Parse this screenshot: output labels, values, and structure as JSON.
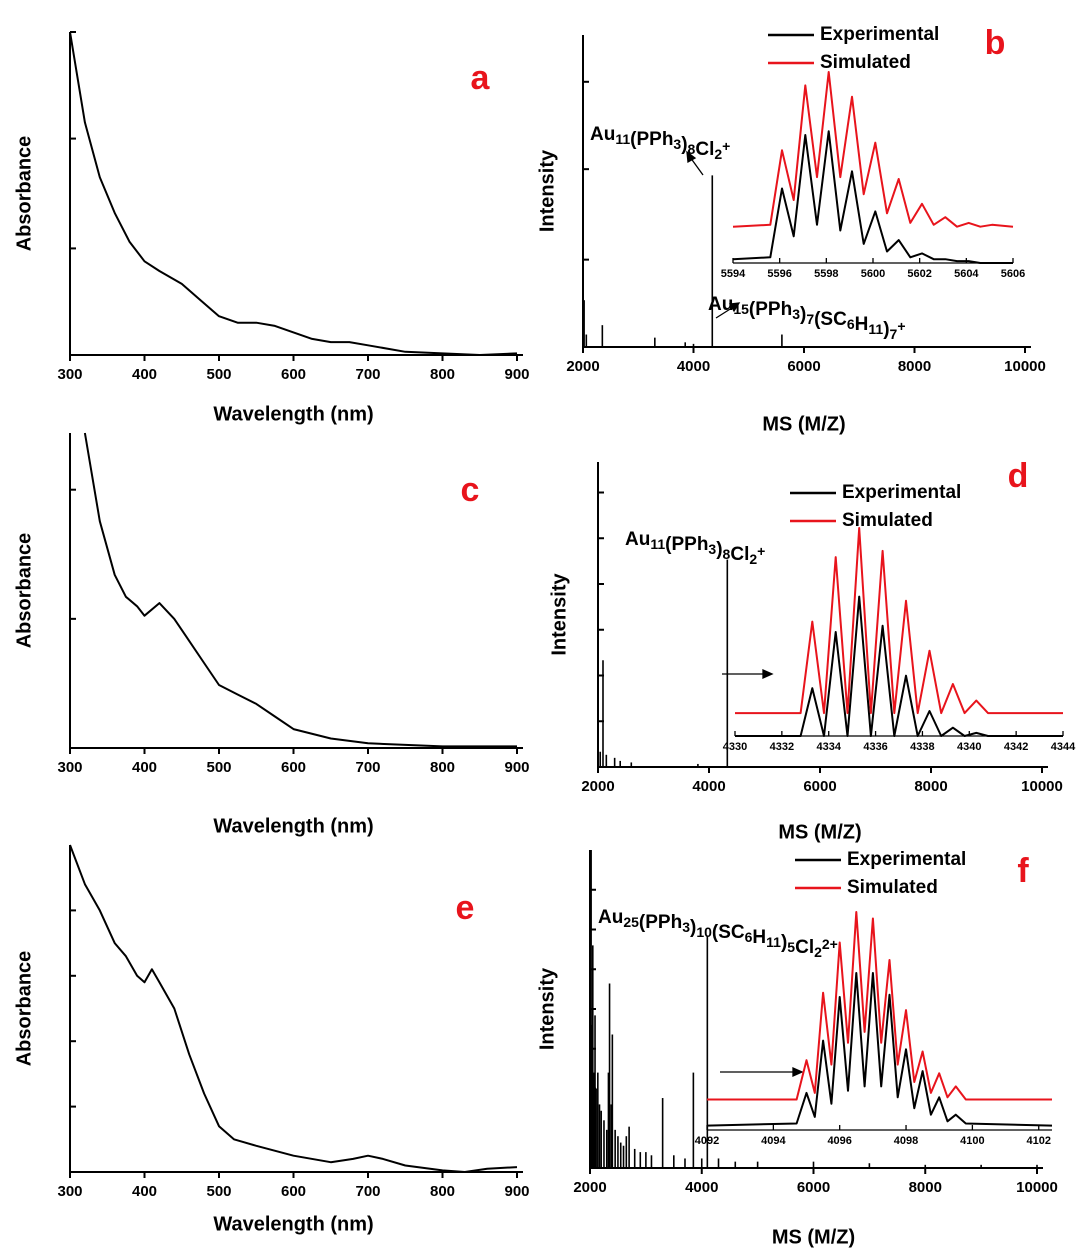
{
  "chart_data": [
    {
      "type": "line",
      "label": "a",
      "xlabel": "Wavelength (nm)",
      "ylabel": "Absorbance",
      "x": [
        300,
        320,
        340,
        360,
        380,
        400,
        420,
        450,
        475,
        500,
        525,
        550,
        575,
        600,
        625,
        650,
        675,
        700,
        750,
        800,
        850,
        900
      ],
      "series": [
        {
          "color": "#000000",
          "values": [
            1.0,
            0.72,
            0.55,
            0.44,
            0.35,
            0.29,
            0.26,
            0.22,
            0.17,
            0.12,
            0.1,
            0.1,
            0.09,
            0.07,
            0.05,
            0.04,
            0.04,
            0.03,
            0.01,
            0.005,
            0,
            0.005
          ]
        }
      ],
      "xlim": [
        300,
        900
      ],
      "xticks": [
        300,
        400,
        500,
        600,
        700,
        800,
        900
      ],
      "ylim": [
        0,
        1
      ],
      "yticks": [
        0,
        0.33,
        0.67,
        1
      ]
    },
    {
      "type": "stem",
      "label": "b",
      "xlabel": "MS (M/Z)",
      "ylabel": "Intensity",
      "x": [
        2000,
        2020,
        2060,
        2350,
        3300,
        3850,
        4000,
        4340,
        5600
      ],
      "values": [
        1.0,
        0.15,
        0.04,
        0.07,
        0.03,
        0.015,
        0.01,
        0.55,
        0.04
      ],
      "xlim": [
        2000,
        10000
      ],
      "xticks": [
        2000,
        4000,
        6000,
        8000,
        10000
      ],
      "ylim": [
        0,
        1
      ],
      "yticks": [
        0,
        0.28,
        0.57,
        0.85
      ],
      "annotations": [
        "Au11(PPh3)8Cl2+",
        "Au15(PPh3)7(SC6H11)7+"
      ],
      "inset": {
        "type": "line",
        "x": [
          5594,
          5595.6,
          5596.1,
          5596.6,
          5597.1,
          5597.6,
          5598.1,
          5598.6,
          5599.1,
          5599.6,
          5600.1,
          5600.6,
          5601.1,
          5601.6,
          5602.1,
          5602.6,
          5603.1,
          5603.6,
          5604.1,
          5604.6,
          5605.1,
          5606
        ],
        "series": [
          {
            "name": "Experimental",
            "color": "#000000",
            "values": [
              0.02,
              0.03,
              0.39,
              0.14,
              0.67,
              0.2,
              0.69,
              0.17,
              0.48,
              0.1,
              0.27,
              0.06,
              0.12,
              0.03,
              0.05,
              0.02,
              0.02,
              0.01,
              0.01,
              0,
              0,
              0
            ]
          },
          {
            "name": "Simulated",
            "color": "#e8141c",
            "values": [
              0.19,
              0.2,
              0.59,
              0.33,
              0.93,
              0.45,
              1.0,
              0.45,
              0.87,
              0.36,
              0.63,
              0.26,
              0.44,
              0.21,
              0.31,
              0.2,
              0.24,
              0.19,
              0.21,
              0.19,
              0.2,
              0.19
            ]
          }
        ],
        "xlim": [
          5594,
          5606
        ],
        "xticks": [
          5594,
          5596,
          5598,
          5600,
          5602,
          5604,
          5606
        ],
        "ylim": [
          0,
          1
        ]
      }
    },
    {
      "type": "line",
      "label": "c",
      "xlabel": "Wavelength (nm)",
      "ylabel": "Absorbance",
      "x": [
        320,
        340,
        360,
        375,
        390,
        400,
        420,
        440,
        460,
        480,
        500,
        525,
        550,
        575,
        600,
        650,
        700,
        800,
        900
      ],
      "series": [
        {
          "color": "#000000",
          "values": [
            1.0,
            0.72,
            0.55,
            0.48,
            0.45,
            0.42,
            0.46,
            0.41,
            0.34,
            0.27,
            0.2,
            0.17,
            0.14,
            0.1,
            0.06,
            0.03,
            0.015,
            0.005,
            0.005
          ]
        }
      ],
      "xlim": [
        300,
        900
      ],
      "xticks": [
        300,
        400,
        500,
        600,
        700,
        800,
        900
      ],
      "ylim": [
        0,
        1
      ],
      "yticks": [
        0,
        0.41,
        0.82
      ]
    },
    {
      "type": "stem",
      "label": "d",
      "xlabel": "MS (M/Z)",
      "ylabel": "Intensity",
      "x": [
        2000,
        2040,
        2090,
        2150,
        2300,
        2400,
        2600,
        3800,
        4330
      ],
      "values": [
        1.0,
        0.05,
        0.35,
        0.04,
        0.03,
        0.02,
        0.015,
        0.01,
        0.68
      ],
      "xlim": [
        2000,
        10000
      ],
      "xticks": [
        2000,
        4000,
        6000,
        8000,
        10000
      ],
      "ylim": [
        0,
        1
      ],
      "yticks": [
        0,
        0.15,
        0.3,
        0.45,
        0.6,
        0.75,
        0.9
      ],
      "annotations": [
        "Au11(PPh3)8Cl2+"
      ],
      "inset": {
        "type": "line",
        "x": [
          4330,
          4332.8,
          4333.3,
          4333.8,
          4334.3,
          4334.8,
          4335.3,
          4335.8,
          4336.3,
          4336.8,
          4337.3,
          4337.8,
          4338.3,
          4338.8,
          4339.3,
          4339.8,
          4340.3,
          4340.8,
          4344
        ],
        "series": [
          {
            "name": "Experimental",
            "color": "#000000",
            "values": [
              0,
              0,
              0.23,
              0,
              0.5,
              0,
              0.67,
              0,
              0.53,
              0,
              0.29,
              0,
              0.12,
              0,
              0.04,
              0,
              0.015,
              0,
              0
            ]
          },
          {
            "name": "Simulated",
            "color": "#e8141c",
            "values": [
              0.11,
              0.11,
              0.55,
              0.11,
              0.86,
              0.11,
              1.0,
              0.11,
              0.89,
              0.11,
              0.65,
              0.11,
              0.41,
              0.11,
              0.25,
              0.11,
              0.17,
              0.11,
              0.11
            ]
          }
        ],
        "xlim": [
          4330,
          4344
        ],
        "xticks": [
          4330,
          4332,
          4334,
          4336,
          4338,
          4340,
          4342,
          4344
        ],
        "ylim": [
          0,
          1
        ]
      }
    },
    {
      "type": "line",
      "label": "e",
      "xlabel": "Wavelength (nm)",
      "ylabel": "Absorbance",
      "x": [
        300,
        320,
        340,
        360,
        375,
        390,
        400,
        410,
        420,
        440,
        460,
        480,
        500,
        520,
        550,
        600,
        650,
        680,
        700,
        720,
        750,
        800,
        830,
        860,
        900
      ],
      "series": [
        {
          "color": "#000000",
          "values": [
            1.0,
            0.88,
            0.8,
            0.7,
            0.66,
            0.6,
            0.58,
            0.62,
            0.58,
            0.5,
            0.36,
            0.24,
            0.14,
            0.1,
            0.08,
            0.05,
            0.03,
            0.04,
            0.05,
            0.04,
            0.02,
            0.005,
            0,
            0.01,
            0.015
          ]
        }
      ],
      "xlim": [
        300,
        900
      ],
      "xticks": [
        300,
        400,
        500,
        600,
        700,
        800,
        900
      ],
      "ylim": [
        0,
        1
      ],
      "yticks": [
        0,
        0.2,
        0.4,
        0.6,
        0.8
      ]
    },
    {
      "type": "stem",
      "label": "f",
      "xlabel": "MS (M/Z)",
      "ylabel": "Intensity",
      "x": [
        2000,
        2010,
        2020,
        2030,
        2050,
        2070,
        2090,
        2110,
        2140,
        2170,
        2200,
        2250,
        2300,
        2330,
        2350,
        2380,
        2400,
        2450,
        2500,
        2550,
        2600,
        2650,
        2700,
        2800,
        2900,
        3000,
        3100,
        3300,
        3500,
        3700,
        3850,
        4000,
        4100,
        4300,
        4600,
        5000,
        6000,
        7000,
        8000,
        9000,
        10000
      ],
      "values": [
        1.0,
        0.62,
        1.0,
        0.45,
        0.7,
        0.3,
        0.48,
        0.25,
        0.3,
        0.2,
        0.18,
        0.15,
        0.12,
        0.3,
        0.58,
        0.2,
        0.42,
        0.12,
        0.1,
        0.08,
        0.07,
        0.1,
        0.13,
        0.06,
        0.05,
        0.05,
        0.04,
        0.22,
        0.04,
        0.03,
        0.3,
        0.03,
        0.73,
        0.03,
        0.02,
        0.02,
        0.02,
        0.015,
        0.01,
        0.01,
        0.01
      ],
      "xlim": [
        2000,
        10000
      ],
      "xticks": [
        2000,
        4000,
        6000,
        8000,
        10000
      ],
      "ylim": [
        0,
        1
      ],
      "yticks": [
        0,
        0.125,
        0.25,
        0.375,
        0.5,
        0.625,
        0.75,
        0.875
      ],
      "annotations": [
        "Au25(PPh3)10(SC6H11)5Cl22+"
      ],
      "inset": {
        "type": "line",
        "x": [
          4092,
          4094.7,
          4095.0,
          4095.25,
          4095.5,
          4095.75,
          4096.0,
          4096.25,
          4096.5,
          4096.75,
          4097.0,
          4097.25,
          4097.5,
          4097.75,
          4098.0,
          4098.25,
          4098.5,
          4098.75,
          4099.0,
          4099.25,
          4099.5,
          4099.8,
          4102.4
        ],
        "series": [
          {
            "name": "Experimental",
            "color": "#000000",
            "values": [
              0.02,
              0.03,
              0.17,
              0.06,
              0.41,
              0.12,
              0.61,
              0.18,
              0.72,
              0.2,
              0.72,
              0.2,
              0.62,
              0.15,
              0.37,
              0.1,
              0.27,
              0.07,
              0.15,
              0.04,
              0.07,
              0.03,
              0.02
            ]
          },
          {
            "name": "Simulated",
            "color": "#e8141c",
            "values": [
              0.14,
              0.14,
              0.32,
              0.17,
              0.63,
              0.3,
              0.86,
              0.4,
              1.0,
              0.45,
              0.97,
              0.4,
              0.78,
              0.3,
              0.55,
              0.22,
              0.36,
              0.17,
              0.26,
              0.15,
              0.2,
              0.14,
              0.14
            ]
          }
        ],
        "xlim": [
          4092,
          4102.4
        ],
        "xticks": [
          4092,
          4094,
          4096,
          4098,
          4100,
          4102
        ],
        "ylim": [
          0,
          1
        ]
      }
    }
  ]
}
